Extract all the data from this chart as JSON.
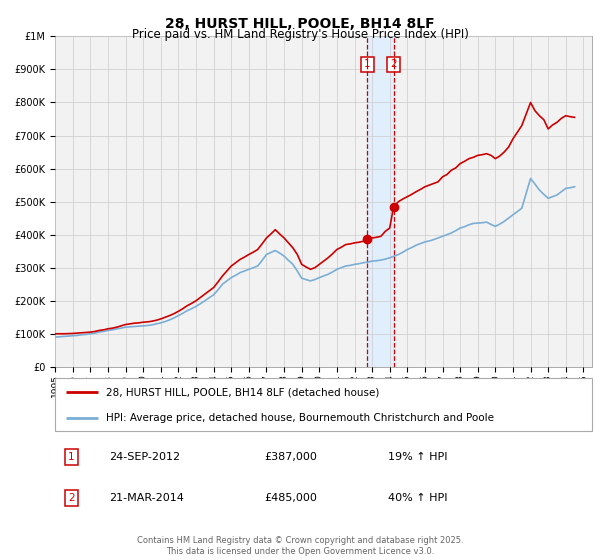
{
  "title": "28, HURST HILL, POOLE, BH14 8LF",
  "subtitle": "Price paid vs. HM Land Registry's House Price Index (HPI)",
  "red_label": "28, HURST HILL, POOLE, BH14 8LF (detached house)",
  "blue_label": "HPI: Average price, detached house, Bournemouth Christchurch and Poole",
  "footer": "Contains HM Land Registry data © Crown copyright and database right 2025.\nThis data is licensed under the Open Government Licence v3.0.",
  "transaction1_date": "24-SEP-2012",
  "transaction1_price": "£387,000",
  "transaction1_hpi": "19% ↑ HPI",
  "transaction2_date": "21-MAR-2014",
  "transaction2_price": "£485,000",
  "transaction2_hpi": "40% ↑ HPI",
  "vline1_x": 2012.73,
  "vline2_x": 2014.22,
  "marker1_red_x": 2012.73,
  "marker1_red_y": 387000,
  "marker2_red_x": 2014.22,
  "marker2_red_y": 485000,
  "ylim": [
    0,
    1000000
  ],
  "xlim": [
    1995,
    2025.5
  ],
  "red_color": "#cc0000",
  "blue_color": "#7aaed6",
  "shading_color": "#ddeeff",
  "grid_color": "#cccccc",
  "background_color": "#f2f2f2",
  "title_fontsize": 10,
  "subtitle_fontsize": 8.5,
  "red_x": [
    1995.0,
    1995.25,
    1995.5,
    1995.75,
    1996.0,
    1996.25,
    1996.5,
    1996.75,
    1997.0,
    1997.25,
    1997.5,
    1997.75,
    1998.0,
    1998.25,
    1998.5,
    1998.75,
    1999.0,
    1999.25,
    1999.5,
    1999.75,
    2000.0,
    2000.25,
    2000.5,
    2000.75,
    2001.0,
    2001.25,
    2001.5,
    2001.75,
    2002.0,
    2002.25,
    2002.5,
    2002.75,
    2003.0,
    2003.25,
    2003.5,
    2003.75,
    2004.0,
    2004.25,
    2004.5,
    2004.75,
    2005.0,
    2005.25,
    2005.5,
    2005.75,
    2006.0,
    2006.25,
    2006.5,
    2006.75,
    2007.0,
    2007.25,
    2007.5,
    2007.75,
    2008.0,
    2008.25,
    2008.5,
    2008.75,
    2009.0,
    2009.25,
    2009.5,
    2009.75,
    2010.0,
    2010.25,
    2010.5,
    2010.75,
    2011.0,
    2011.25,
    2011.5,
    2011.75,
    2012.0,
    2012.25,
    2012.5,
    2012.73,
    2013.0,
    2013.25,
    2013.5,
    2013.75,
    2014.0,
    2014.22,
    2014.5,
    2014.75,
    2015.0,
    2015.25,
    2015.5,
    2015.75,
    2016.0,
    2016.25,
    2016.5,
    2016.75,
    2017.0,
    2017.25,
    2017.5,
    2017.75,
    2018.0,
    2018.25,
    2018.5,
    2018.75,
    2019.0,
    2019.25,
    2019.5,
    2019.75,
    2020.0,
    2020.25,
    2020.5,
    2020.75,
    2021.0,
    2021.25,
    2021.5,
    2021.75,
    2022.0,
    2022.25,
    2022.5,
    2022.75,
    2023.0,
    2023.25,
    2023.5,
    2023.75,
    2024.0,
    2024.25,
    2024.5
  ],
  "red_y": [
    100000,
    100000,
    100000,
    100500,
    101000,
    102000,
    103000,
    104000,
    105000,
    107000,
    110000,
    112000,
    115000,
    117000,
    120000,
    124000,
    128000,
    130000,
    132000,
    133000,
    135000,
    136000,
    138000,
    141000,
    145000,
    150000,
    155000,
    161000,
    168000,
    176000,
    185000,
    192000,
    200000,
    210000,
    220000,
    230000,
    240000,
    257000,
    275000,
    290000,
    305000,
    315000,
    325000,
    332000,
    340000,
    347000,
    355000,
    372000,
    390000,
    402000,
    415000,
    402000,
    390000,
    375000,
    360000,
    340000,
    310000,
    302000,
    295000,
    300000,
    310000,
    320000,
    330000,
    342000,
    355000,
    362000,
    370000,
    372000,
    375000,
    377000,
    380000,
    387000,
    390000,
    392000,
    395000,
    410000,
    420000,
    485000,
    500000,
    508000,
    515000,
    522000,
    530000,
    537000,
    545000,
    550000,
    555000,
    560000,
    575000,
    582000,
    595000,
    602000,
    615000,
    622000,
    630000,
    634000,
    640000,
    642000,
    645000,
    640000,
    630000,
    638000,
    650000,
    665000,
    690000,
    710000,
    730000,
    765000,
    800000,
    775000,
    760000,
    748000,
    720000,
    732000,
    740000,
    752000,
    760000,
    757000,
    755000
  ],
  "blue_x": [
    1995.0,
    1995.25,
    1995.5,
    1995.75,
    1996.0,
    1996.25,
    1996.5,
    1996.75,
    1997.0,
    1997.25,
    1997.5,
    1997.75,
    1998.0,
    1998.25,
    1998.5,
    1998.75,
    1999.0,
    1999.25,
    1999.5,
    1999.75,
    2000.0,
    2000.25,
    2000.5,
    2000.75,
    2001.0,
    2001.25,
    2001.5,
    2001.75,
    2002.0,
    2002.25,
    2002.5,
    2002.75,
    2003.0,
    2003.25,
    2003.5,
    2003.75,
    2004.0,
    2004.25,
    2004.5,
    2004.75,
    2005.0,
    2005.25,
    2005.5,
    2005.75,
    2006.0,
    2006.25,
    2006.5,
    2006.75,
    2007.0,
    2007.25,
    2007.5,
    2007.75,
    2008.0,
    2008.25,
    2008.5,
    2008.75,
    2009.0,
    2009.25,
    2009.5,
    2009.75,
    2010.0,
    2010.25,
    2010.5,
    2010.75,
    2011.0,
    2011.25,
    2011.5,
    2011.75,
    2012.0,
    2012.25,
    2012.5,
    2012.75,
    2013.0,
    2013.25,
    2013.5,
    2013.75,
    2014.0,
    2014.25,
    2014.5,
    2014.75,
    2015.0,
    2015.25,
    2015.5,
    2015.75,
    2016.0,
    2016.25,
    2016.5,
    2016.75,
    2017.0,
    2017.25,
    2017.5,
    2017.75,
    2018.0,
    2018.25,
    2018.5,
    2018.75,
    2019.0,
    2019.25,
    2019.5,
    2019.75,
    2020.0,
    2020.25,
    2020.5,
    2020.75,
    2021.0,
    2021.25,
    2021.5,
    2021.75,
    2022.0,
    2022.25,
    2022.5,
    2022.75,
    2023.0,
    2023.25,
    2023.5,
    2023.75,
    2024.0,
    2024.25,
    2024.5
  ],
  "blue_y": [
    90000,
    91000,
    92000,
    93000,
    94000,
    95000,
    97000,
    98000,
    100000,
    102000,
    105000,
    107000,
    110000,
    112000,
    115000,
    117000,
    120000,
    121000,
    122000,
    123000,
    124000,
    125000,
    127000,
    130000,
    133000,
    137000,
    142000,
    148000,
    155000,
    162000,
    170000,
    176000,
    183000,
    191000,
    200000,
    209000,
    218000,
    233000,
    250000,
    260000,
    270000,
    277000,
    285000,
    290000,
    295000,
    300000,
    305000,
    322000,
    340000,
    346000,
    352000,
    344000,
    335000,
    322000,
    310000,
    290000,
    268000,
    264000,
    260000,
    264000,
    270000,
    275000,
    280000,
    287000,
    295000,
    300000,
    305000,
    307000,
    310000,
    312000,
    315000,
    317000,
    320000,
    321000,
    323000,
    326000,
    330000,
    335000,
    340000,
    347000,
    355000,
    361000,
    368000,
    373000,
    378000,
    381000,
    385000,
    390000,
    395000,
    400000,
    405000,
    412000,
    420000,
    424000,
    430000,
    434000,
    435000,
    436000,
    438000,
    431000,
    425000,
    432000,
    440000,
    450000,
    460000,
    470000,
    480000,
    525000,
    570000,
    553000,
    535000,
    522000,
    510000,
    515000,
    520000,
    530000,
    540000,
    542000,
    545000
  ]
}
